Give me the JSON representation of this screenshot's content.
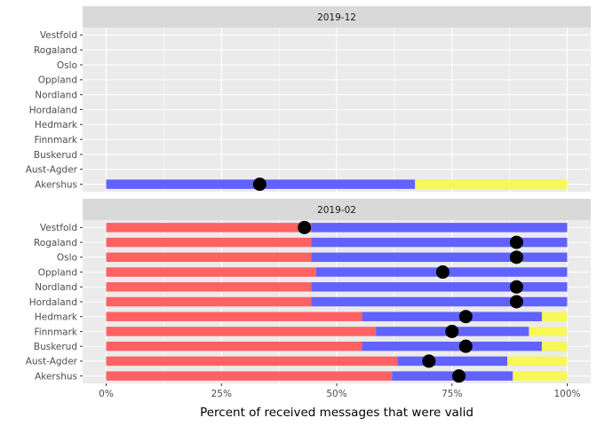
{
  "chart_data": {
    "type": "bar",
    "xlabel": "Percent of received messages that were valid",
    "ylabel": "",
    "xlim": [
      0,
      100
    ],
    "x_ticks": [
      "0%",
      "25%",
      "50%",
      "75%",
      "100%"
    ],
    "x_tick_values": [
      0,
      25,
      50,
      75,
      100
    ],
    "categories": [
      "Vestfold",
      "Rogaland",
      "Oslo",
      "Oppland",
      "Nordland",
      "Hordaland",
      "Hedmark",
      "Finnmark",
      "Buskerud",
      "Aust-Agder",
      "Akershus"
    ],
    "colors": {
      "red": "#ff6262",
      "blue": "#6262ff",
      "yellow": "#f7f759",
      "point": "#000000",
      "panel": "#ebebeb",
      "strip": "#d9d9d9",
      "grid": "#ffffff"
    },
    "panels": [
      {
        "label": "2019-12",
        "rows": [
          {
            "category": "Akershus",
            "red": 0,
            "blue": 67,
            "yellow": 100,
            "point": 33.3
          }
        ]
      },
      {
        "label": "2019-02",
        "rows": [
          {
            "category": "Vestfold",
            "red": 44.5,
            "blue": 100,
            "yellow": 100,
            "point": 43
          },
          {
            "category": "Rogaland",
            "red": 44.5,
            "blue": 100,
            "yellow": 100,
            "point": 89
          },
          {
            "category": "Oslo",
            "red": 44.5,
            "blue": 100,
            "yellow": 100,
            "point": 89
          },
          {
            "category": "Oppland",
            "red": 45.5,
            "blue": 100,
            "yellow": 100,
            "point": 73
          },
          {
            "category": "Nordland",
            "red": 44.5,
            "blue": 100,
            "yellow": 100,
            "point": 89
          },
          {
            "category": "Hordaland",
            "red": 44.5,
            "blue": 100,
            "yellow": 100,
            "point": 89
          },
          {
            "category": "Hedmark",
            "red": 55.5,
            "blue": 94.5,
            "yellow": 100,
            "point": 78
          },
          {
            "category": "Finnmark",
            "red": 58.5,
            "blue": 91.7,
            "yellow": 100,
            "point": 75
          },
          {
            "category": "Buskerud",
            "red": 55.5,
            "blue": 94.5,
            "yellow": 100,
            "point": 78
          },
          {
            "category": "Aust-Agder",
            "red": 63.2,
            "blue": 87,
            "yellow": 100,
            "point": 70
          },
          {
            "category": "Akershus",
            "red": 62,
            "blue": 88.2,
            "yellow": 100,
            "point": 76.5
          }
        ]
      }
    ]
  }
}
